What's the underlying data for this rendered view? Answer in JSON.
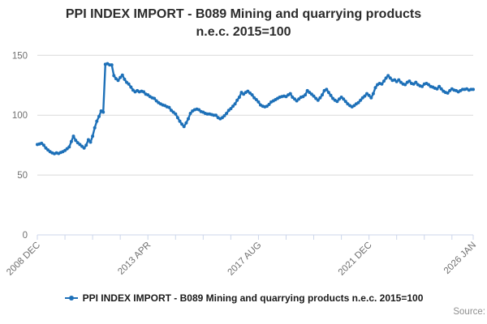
{
  "header": {
    "title_line1": "PPI INDEX IMPORT - B089 Mining and quarrying products",
    "title_line2": "n.e.c. 2015=100"
  },
  "legend": {
    "label": "PPI INDEX IMPORT - B089 Mining and quarrying products n.e.c. 2015=100",
    "marker": "line-with-dot-icon",
    "color": "#1d70b8"
  },
  "source": {
    "label": "Source:"
  },
  "colors": {
    "line": "#1d70b8",
    "grid": "#d9d9d9",
    "axis": "#ccd6eb",
    "tick_label": "#707070",
    "title": "#2b2b2b",
    "source": "#8e8e8e"
  },
  "chart_data": {
    "type": "line",
    "title": "PPI INDEX IMPORT - B089 Mining and quarrying products n.e.c. 2015=100",
    "x_start": "2008-12",
    "x_end": "2026-01",
    "x_tick_interval_months": 13,
    "x_labeled_ticks": [
      {
        "month": 0,
        "label": "2008 DEC"
      },
      {
        "month": 52,
        "label": "2013 APR"
      },
      {
        "month": 104,
        "label": "2017 AUG"
      },
      {
        "month": 156,
        "label": "2021 DEC"
      },
      {
        "month": 205,
        "label": "2026 JAN"
      }
    ],
    "y_ticks": [
      0,
      50,
      100,
      150
    ],
    "ylim": [
      0,
      158
    ],
    "grid": "horizontal",
    "legend_position": "bottom",
    "series": [
      {
        "name": "PPI INDEX IMPORT - B089 Mining and quarrying products n.e.c. 2015=100",
        "color": "#1d70b8",
        "values": [
          75.5,
          76,
          76.5,
          75,
          72.5,
          71,
          69.5,
          68.5,
          67.8,
          68.5,
          68,
          68.8,
          69.5,
          70.5,
          72,
          73.5,
          78,
          82.5,
          79,
          77,
          75.5,
          74,
          72.5,
          75,
          79.5,
          77.5,
          82.5,
          89.5,
          95,
          99,
          103.5,
          102.5,
          142.5,
          143,
          142,
          142,
          133,
          130.5,
          129,
          131.5,
          133.5,
          130,
          127.5,
          126,
          123.5,
          121,
          119.5,
          120.5,
          119.5,
          120,
          119.5,
          117.5,
          117,
          115.5,
          114.5,
          114,
          112,
          110.5,
          109.5,
          108.5,
          108,
          107,
          106.5,
          104,
          102.5,
          101,
          98,
          95,
          92.5,
          90.5,
          93.5,
          97,
          101.5,
          103.5,
          104.5,
          105,
          104.5,
          103,
          102.5,
          101.5,
          101,
          101,
          100.5,
          100,
          100,
          98,
          97,
          98,
          99.5,
          101.5,
          104,
          105.5,
          107.5,
          109.5,
          112.5,
          115,
          119,
          117.5,
          119,
          120,
          118.5,
          117,
          114.5,
          113,
          111,
          108.5,
          107.5,
          107,
          107.5,
          109,
          111,
          112,
          113,
          114,
          115,
          115.5,
          116,
          115.5,
          117,
          118,
          115,
          113.5,
          112,
          113.5,
          115,
          115.5,
          117,
          120.5,
          119,
          117.5,
          116,
          114,
          112.5,
          114.5,
          117,
          120.5,
          121.5,
          119,
          116.5,
          114,
          112.5,
          111.5,
          113.5,
          115,
          113.5,
          111.5,
          109.5,
          108,
          107,
          108,
          109.5,
          110.5,
          112.5,
          114.5,
          116,
          118,
          116.5,
          114.5,
          118,
          123,
          125.5,
          126.5,
          126,
          128.5,
          131,
          133,
          131,
          129,
          129.5,
          128,
          129.5,
          127.5,
          126,
          125.5,
          127.5,
          128.5,
          126.5,
          126,
          127.5,
          125.5,
          124.5,
          124,
          126,
          126.5,
          125.5,
          124,
          123.5,
          122.5,
          122,
          124,
          122,
          120,
          119,
          118.5,
          120.5,
          122,
          121,
          120.5,
          119.5,
          120.5,
          121.5,
          121.5,
          122,
          121,
          121.5,
          121.5
        ]
      }
    ]
  }
}
